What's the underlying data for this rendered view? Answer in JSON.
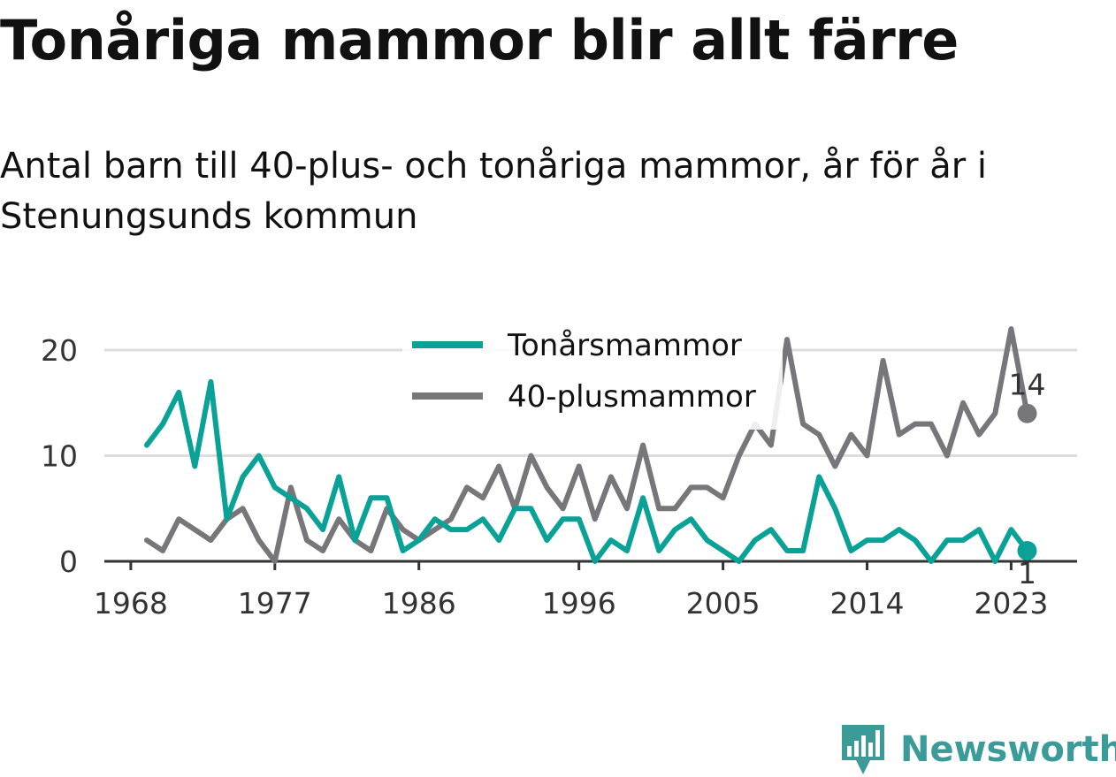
{
  "title": "Tonåriga mammor blir allt färre",
  "subtitle": "Antal barn till 40-plus- och tonåriga mammor, år för år i Stenungsunds kommun",
  "brand": {
    "name": "Newsworthy",
    "icon": "newsworthy-bar-chart-logo-icon",
    "color": "#3a9b98"
  },
  "chart_data": {
    "type": "line",
    "title": "",
    "xlabel": "",
    "ylabel": "",
    "x": [
      1969,
      1970,
      1971,
      1972,
      1973,
      1974,
      1975,
      1976,
      1977,
      1978,
      1979,
      1980,
      1981,
      1982,
      1983,
      1984,
      1985,
      1986,
      1987,
      1988,
      1989,
      1990,
      1991,
      1992,
      1993,
      1994,
      1995,
      1996,
      1997,
      1998,
      1999,
      2000,
      2001,
      2002,
      2003,
      2004,
      2005,
      2006,
      2007,
      2008,
      2009,
      2010,
      2011,
      2012,
      2013,
      2014,
      2015,
      2016,
      2017,
      2018,
      2019,
      2020,
      2021,
      2022,
      2023,
      2024
    ],
    "series": [
      {
        "name": "Tonårsmammor",
        "color": "#0aa296",
        "values": [
          11,
          13,
          16,
          9,
          17,
          4,
          8,
          10,
          7,
          6,
          5,
          3,
          8,
          2,
          6,
          6,
          1,
          2,
          4,
          3,
          3,
          4,
          2,
          5,
          5,
          2,
          4,
          4,
          0,
          2,
          1,
          6,
          1,
          3,
          4,
          2,
          1,
          0,
          2,
          3,
          1,
          1,
          8,
          5,
          1,
          2,
          2,
          3,
          2,
          0,
          2,
          2,
          3,
          0,
          3,
          1
        ],
        "end_label": "1"
      },
      {
        "name": "40-plusmammor",
        "color": "#76767b",
        "values": [
          2,
          1,
          4,
          3,
          2,
          4,
          5,
          2,
          0,
          7,
          2,
          1,
          4,
          2,
          1,
          5,
          3,
          2,
          3,
          4,
          7,
          6,
          9,
          5,
          10,
          7,
          5,
          9,
          4,
          8,
          5,
          11,
          5,
          5,
          7,
          7,
          6,
          10,
          13,
          11,
          21,
          13,
          12,
          9,
          12,
          10,
          19,
          12,
          13,
          13,
          10,
          15,
          12,
          14,
          22,
          14
        ],
        "end_label": "14"
      }
    ],
    "x_ticks": [
      1968,
      1977,
      1986,
      1996,
      2005,
      2014,
      2023
    ],
    "y_ticks": [
      0,
      10,
      20
    ],
    "xlim": [
      1968,
      2026
    ],
    "ylim": [
      0,
      22
    ],
    "grid": "horizontal",
    "legend_position": "top-center"
  }
}
